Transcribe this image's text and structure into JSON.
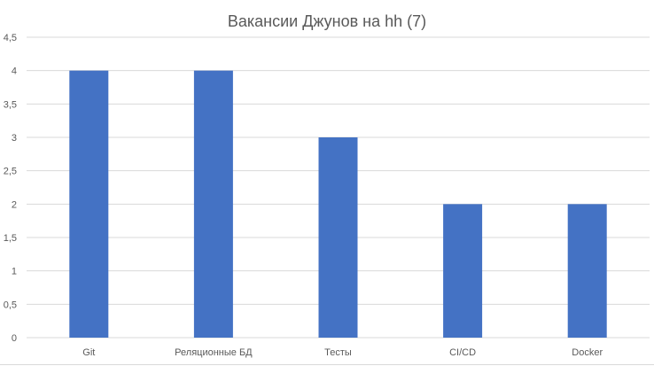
{
  "chart_data": {
    "type": "bar",
    "title": "Вакансии Джунов на hh (7)",
    "xlabel": "",
    "ylabel": "",
    "categories": [
      "Git",
      "Реляционные БД",
      "Тесты",
      "CI/CD",
      "Docker"
    ],
    "values": [
      4,
      4,
      3,
      2,
      2
    ],
    "ylim": [
      0,
      4.5
    ],
    "yticks": [
      0,
      0.5,
      1,
      1.5,
      2,
      2.5,
      3,
      3.5,
      4,
      4.5
    ],
    "ytick_labels": [
      "0",
      "0,5",
      "1",
      "1,5",
      "2",
      "2,5",
      "3",
      "3,5",
      "4",
      "4,5"
    ],
    "grid": true,
    "legend": "none",
    "bar_color": "#4472c4",
    "grid_color": "#d9d9d9"
  }
}
